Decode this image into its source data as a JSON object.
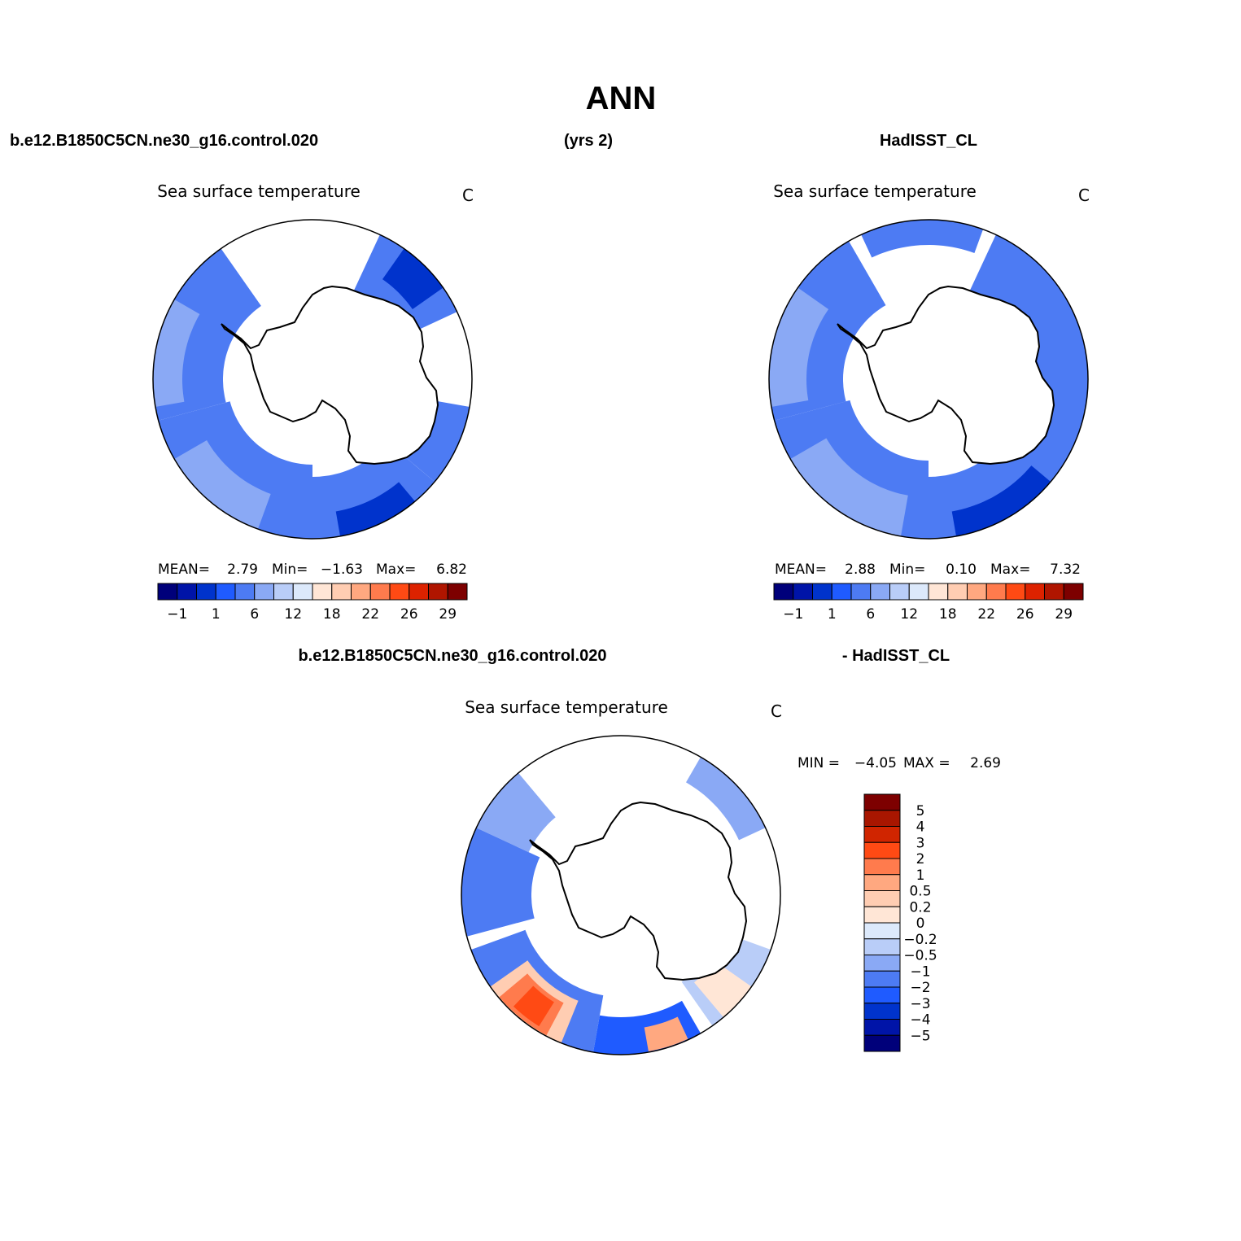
{
  "figure": {
    "title": "ANN",
    "case_name": "b.e12.B1850C5CN.ne30_g16.control.020",
    "years": "(yrs 2)",
    "obs_name": "HadISST_CL",
    "diff_case_name": "b.e12.B1850C5CN.ne30_g16.control.020",
    "diff_obs_name": "- HadISST_CL"
  },
  "panels": [
    {
      "id": "model",
      "title": "Sea surface temperature",
      "units": "C",
      "stats": {
        "mean_label": "MEAN=",
        "mean": "2.79",
        "min_label": "Min=",
        "min": "−1.63",
        "max_label": "Max=",
        "max": "6.82"
      }
    },
    {
      "id": "obs",
      "title": "Sea surface temperature",
      "units": "C",
      "stats": {
        "mean_label": "MEAN=",
        "mean": "2.88",
        "min_label": "Min=",
        "min": "0.10",
        "max_label": "Max=",
        "max": "7.32"
      }
    },
    {
      "id": "diff",
      "title": "Sea surface temperature",
      "units": "C",
      "stats": {
        "min_label": "MIN =",
        "min": "−4.05",
        "max_label": "MAX =",
        "max": "2.69"
      }
    }
  ],
  "abs_colorbar": {
    "colors": [
      "#00007a",
      "#0014a8",
      "#0033cc",
      "#1f5bff",
      "#4d7bf3",
      "#8aa9f5",
      "#b9cdf8",
      "#dce9fb",
      "#ffe6d6",
      "#ffcdb2",
      "#ffa880",
      "#ff7b4d",
      "#ff4a14",
      "#dd2200",
      "#b01500",
      "#7d0000"
    ],
    "tick_labels": [
      "−1",
      "1",
      "6",
      "12",
      "18",
      "22",
      "26",
      "29"
    ]
  },
  "diff_colorbar": {
    "colors_top_to_bottom": [
      "#7d0000",
      "#a81600",
      "#d02500",
      "#ff4a14",
      "#ff7b4d",
      "#ffa880",
      "#ffcdb2",
      "#ffe6d6",
      "#dce9fb",
      "#b9cdf8",
      "#8aa9f5",
      "#4d7bf3",
      "#1f5bff",
      "#0033cc",
      "#0014a8",
      "#00007a"
    ],
    "tick_labels_top_to_bottom": [
      "5",
      "4",
      "3",
      "2",
      "1",
      "0.5",
      "0.2",
      "0",
      "−0.2",
      "−0.5",
      "−1",
      "−2",
      "−3",
      "−4",
      "−5"
    ]
  },
  "field_colors": {
    "dark": "#0033cc",
    "mid": "#1f5bff",
    "base": "#4d7bf3",
    "light": "#8aa9f5",
    "pale": "#b9cdf8",
    "warm1": "#ffe6d6",
    "warm2": "#ffcdb2",
    "warm3": "#ffa880",
    "warm4": "#ff7b4d",
    "warm5": "#ff4a14"
  }
}
